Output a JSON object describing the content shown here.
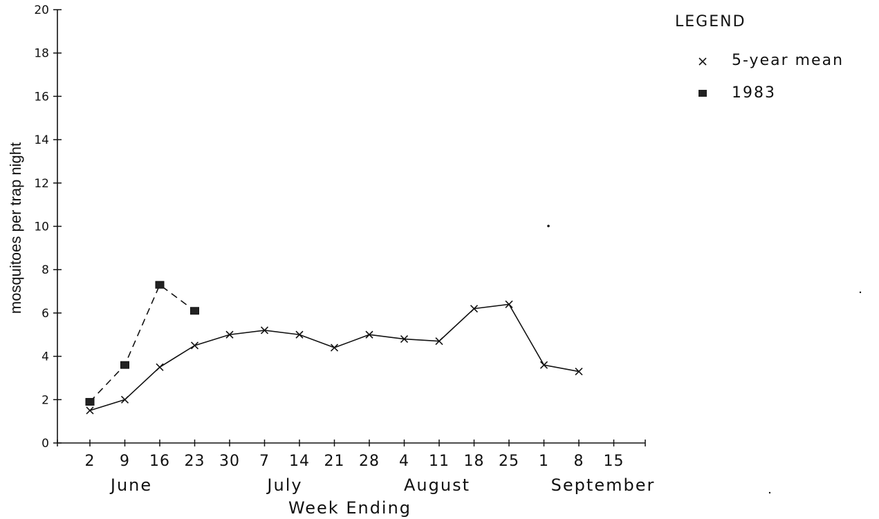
{
  "chart_data": {
    "type": "line",
    "title": "",
    "xlabel": "Week Ending",
    "ylabel": "mosquitoes per trap night",
    "ylim": [
      0,
      20
    ],
    "yticks": [
      "0",
      "2",
      "4",
      "6",
      "8",
      "10",
      "12",
      "14",
      "16",
      "18",
      "20"
    ],
    "categories": [
      "2",
      "9",
      "16",
      "23",
      "30",
      "7",
      "14",
      "21",
      "28",
      "4",
      "11",
      "18",
      "25",
      "1",
      "8",
      "15"
    ],
    "months": [
      "June",
      "July",
      "August",
      "September"
    ],
    "legend": {
      "title": "LEGEND",
      "position": "top-right"
    },
    "series": [
      {
        "name": "5-year mean",
        "marker": "x",
        "line": "solid",
        "values": [
          1.5,
          2.0,
          3.5,
          4.5,
          5.0,
          5.2,
          5.0,
          4.4,
          5.0,
          4.8,
          4.7,
          6.2,
          6.4,
          3.6,
          3.3,
          null
        ]
      },
      {
        "name": "1983",
        "marker": "square",
        "line": "dashed",
        "values": [
          1.9,
          3.6,
          7.3,
          6.1,
          null,
          null,
          null,
          null,
          null,
          null,
          null,
          null,
          null,
          null,
          null,
          null
        ]
      }
    ],
    "grid": false
  }
}
